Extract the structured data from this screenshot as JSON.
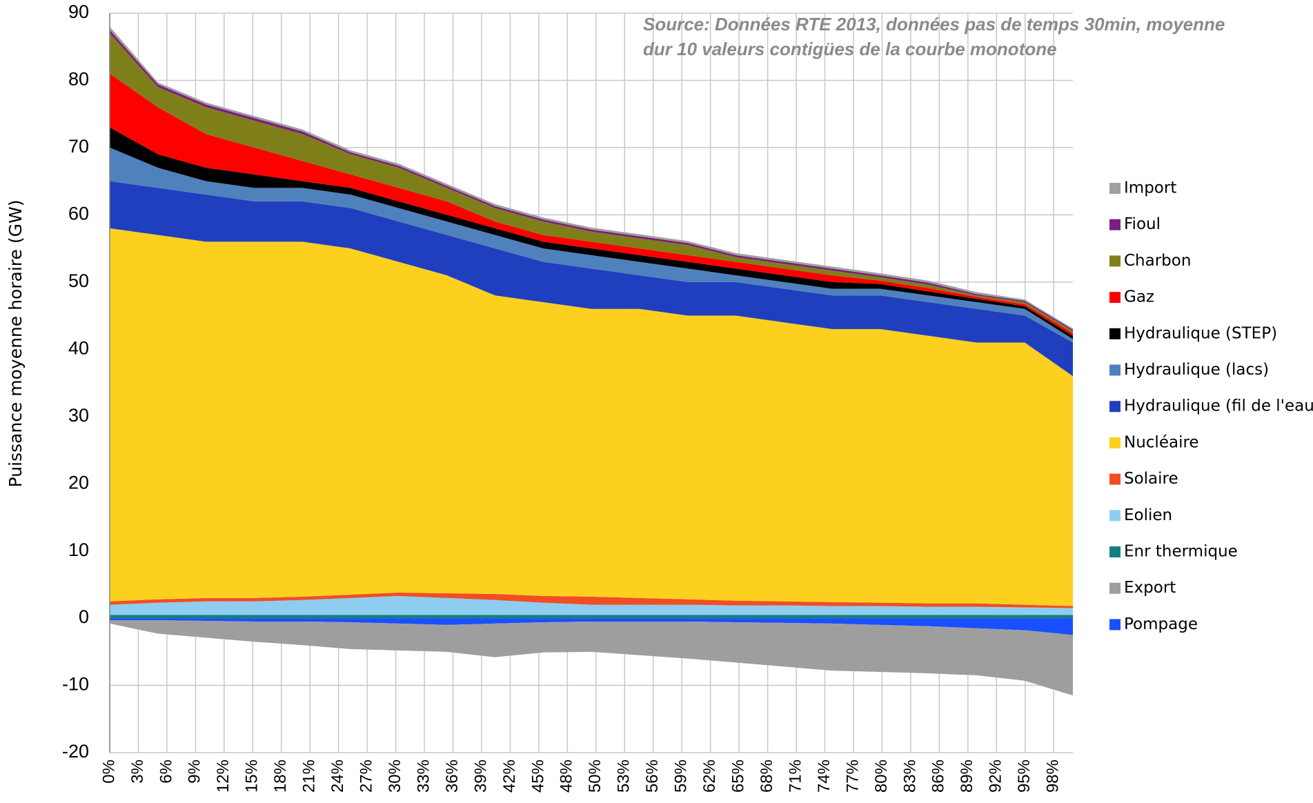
{
  "chart_data": {
    "type": "stacked_area",
    "ylabel": "Puissance moyenne horaire (GW)",
    "annotation": [
      "Source: Données RTE 2013, données pas de temps 30min, moyenne",
      "dur 10 valeurs contigües de la courbe monotone"
    ],
    "x": [
      0,
      5,
      10,
      15,
      20,
      25,
      30,
      35,
      40,
      45,
      50,
      55,
      60,
      65,
      70,
      75,
      80,
      85,
      90,
      95,
      100
    ],
    "xlim": [
      0,
      100
    ],
    "xticks": [
      {
        "value": 0,
        "label": "0%"
      },
      {
        "value": 2.97,
        "label": "3%"
      },
      {
        "value": 5.94,
        "label": "6%"
      },
      {
        "value": 8.91,
        "label": "9%"
      },
      {
        "value": 11.88,
        "label": "12%"
      },
      {
        "value": 14.85,
        "label": "15%"
      },
      {
        "value": 17.82,
        "label": "18%"
      },
      {
        "value": 20.79,
        "label": "21%"
      },
      {
        "value": 23.76,
        "label": "24%"
      },
      {
        "value": 26.73,
        "label": "27%"
      },
      {
        "value": 29.7,
        "label": "30%"
      },
      {
        "value": 32.67,
        "label": "33%"
      },
      {
        "value": 35.64,
        "label": "36%"
      },
      {
        "value": 38.61,
        "label": "39%"
      },
      {
        "value": 41.58,
        "label": "42%"
      },
      {
        "value": 44.55,
        "label": "45%"
      },
      {
        "value": 47.52,
        "label": "48%"
      },
      {
        "value": 50.49,
        "label": "50%"
      },
      {
        "value": 53.46,
        "label": "53%"
      },
      {
        "value": 56.43,
        "label": "56%"
      },
      {
        "value": 59.4,
        "label": "59%"
      },
      {
        "value": 62.37,
        "label": "62%"
      },
      {
        "value": 65.34,
        "label": "65%"
      },
      {
        "value": 68.31,
        "label": "68%"
      },
      {
        "value": 71.28,
        "label": "71%"
      },
      {
        "value": 74.25,
        "label": "74%"
      },
      {
        "value": 77.22,
        "label": "77%"
      },
      {
        "value": 80.19,
        "label": "80%"
      },
      {
        "value": 83.16,
        "label": "83%"
      },
      {
        "value": 86.13,
        "label": "86%"
      },
      {
        "value": 89.1,
        "label": "89%"
      },
      {
        "value": 92.07,
        "label": "92%"
      },
      {
        "value": 95.04,
        "label": "95%"
      },
      {
        "value": 98.01,
        "label": "98%"
      }
    ],
    "ylim": [
      -20,
      90
    ],
    "yticks": [
      -20,
      -10,
      0,
      10,
      20,
      30,
      40,
      50,
      60,
      70,
      80,
      90
    ],
    "grid": true,
    "legend": "right",
    "series": [
      {
        "name": "Import",
        "color": "#a0a0a0",
        "values": [
          0.5,
          0.3,
          0.3,
          0.3,
          0.3,
          0.3,
          0.3,
          0.3,
          0.3,
          0.3,
          0.3,
          0.3,
          0.3,
          0.3,
          0.3,
          0.3,
          0.3,
          0.3,
          0.3,
          0.2,
          0.2
        ]
      },
      {
        "name": "Fioul",
        "color": "#7b1f7e",
        "values": [
          0.5,
          0.4,
          0.4,
          0.4,
          0.4,
          0.3,
          0.3,
          0.3,
          0.3,
          0.3,
          0.3,
          0.3,
          0.3,
          0.3,
          0.3,
          0.3,
          0.3,
          0.3,
          0.2,
          0.2,
          0.2
        ]
      },
      {
        "name": "Charbon",
        "color": "#7f7f1a",
        "values": [
          6,
          3,
          4,
          4,
          4,
          3,
          3,
          2,
          2,
          2,
          1.5,
          1.5,
          1.5,
          0.7,
          0.7,
          0.7,
          0.5,
          0.5,
          0.2,
          0.3,
          0.3
        ]
      },
      {
        "name": "Gaz",
        "color": "#ff0000",
        "values": [
          8,
          7,
          5,
          4,
          3,
          2,
          2,
          2,
          1,
          1,
          1,
          1,
          1,
          1,
          1,
          1,
          0.5,
          0.5,
          0.3,
          0.3,
          0.4
        ]
      },
      {
        "name": "Hydraulique (STEP)",
        "color": "#000000",
        "values": [
          3,
          2,
          2,
          2,
          1,
          1,
          1,
          1,
          1,
          1,
          1,
          1,
          1,
          1,
          1,
          1,
          0.7,
          0.6,
          0.5,
          0.4,
          0.5
        ]
      },
      {
        "name": "Hydraulique (lacs)",
        "color": "#4f81bd",
        "values": [
          5,
          3,
          2,
          2,
          2,
          2,
          2,
          2,
          2,
          2,
          2,
          2,
          2,
          1,
          1,
          1,
          1,
          1,
          1,
          1,
          0.5
        ]
      },
      {
        "name": "Hydraulique (fil de l'eau)",
        "color": "#1f3fbf",
        "values": [
          7,
          7,
          7,
          6,
          6,
          6,
          6,
          6,
          7,
          6,
          6,
          5,
          5,
          5,
          5,
          5,
          5,
          5,
          5,
          4,
          5
        ]
      },
      {
        "name": "Nucléaire",
        "color": "#fdd01f",
        "values": [
          55.5,
          54.2,
          53,
          53,
          52.8,
          51.5,
          49.2,
          47.3,
          44.4,
          43.7,
          42.8,
          43,
          42.2,
          42.4,
          41.5,
          40.6,
          40.7,
          39.8,
          38.8,
          39,
          34.2
        ]
      },
      {
        "name": "Solaire",
        "color": "#f04e23",
        "values": [
          0.5,
          0.5,
          0.5,
          0.5,
          0.5,
          0.5,
          0.5,
          0.7,
          0.9,
          1,
          1.2,
          1,
          0.8,
          0.7,
          0.6,
          0.6,
          0.5,
          0.5,
          0.5,
          0.4,
          0.3
        ]
      },
      {
        "name": "Eolien",
        "color": "#8fcdf0",
        "values": [
          1.5,
          1.8,
          2,
          2,
          2.2,
          2.5,
          2.8,
          2.5,
          2.2,
          1.8,
          1.5,
          1.5,
          1.5,
          1.4,
          1.4,
          1.3,
          1.3,
          1.2,
          1.2,
          1.1,
          1
        ]
      },
      {
        "name": "Enr thermique",
        "color": "#158080",
        "values": [
          0.5,
          0.5,
          0.5,
          0.5,
          0.5,
          0.5,
          0.5,
          0.5,
          0.5,
          0.5,
          0.5,
          0.5,
          0.5,
          0.5,
          0.5,
          0.5,
          0.5,
          0.5,
          0.5,
          0.5,
          0.5
        ]
      },
      {
        "name": "Export",
        "color": "#9e9e9e",
        "values": [
          -0.5,
          -2,
          -2.5,
          -3,
          -3.5,
          -4,
          -4,
          -4,
          -5,
          -4.5,
          -4.5,
          -5,
          -5.5,
          -6,
          -6.5,
          -7,
          -7,
          -7,
          -7,
          -7.5,
          -9
        ]
      },
      {
        "name": "Pompage",
        "color": "#1a4fff",
        "values": [
          -0.3,
          -0.3,
          -0.4,
          -0.5,
          -0.5,
          -0.6,
          -0.8,
          -1,
          -0.8,
          -0.6,
          -0.5,
          -0.5,
          -0.5,
          -0.6,
          -0.7,
          -0.8,
          -1,
          -1.2,
          -1.5,
          -1.8,
          -2.5
        ]
      }
    ]
  }
}
